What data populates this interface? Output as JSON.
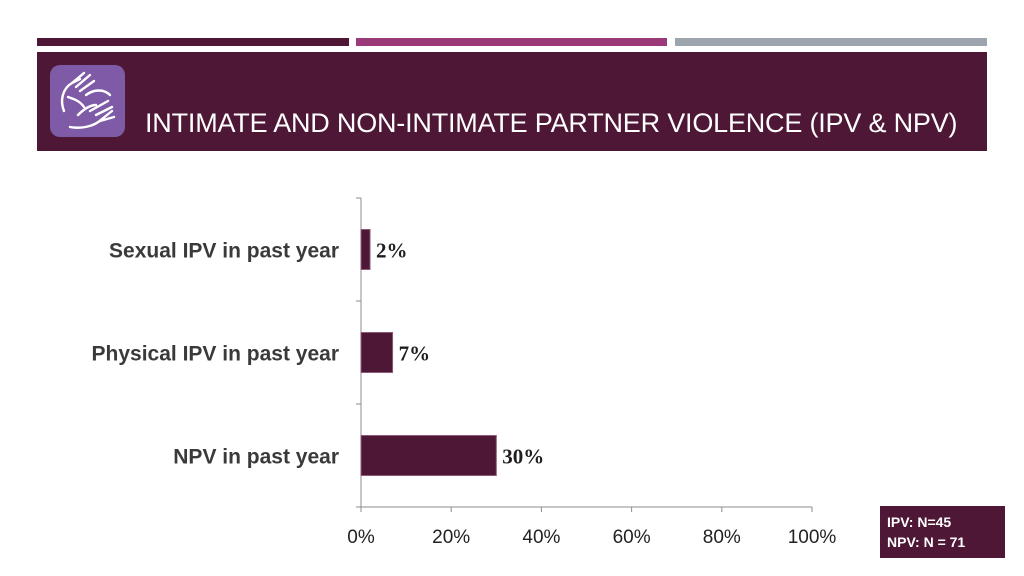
{
  "colors": {
    "accent": "#4e1735",
    "stripe_primary": "#4e1735",
    "stripe_secondary": "#9a3a78",
    "stripe_tertiary": "#9ca4ad",
    "logo_background": "#7f5aa6",
    "axis": "#8c8c8c"
  },
  "header": {
    "title": "INTIMATE AND NON-INTIMATE PARTNER VIOLENCE (IPV & NPV)",
    "logo_icon": "hands-icon"
  },
  "chart_data": {
    "type": "bar",
    "orientation": "horizontal",
    "categories": [
      "Sexual IPV in past year",
      "Physical IPV in past year",
      "NPV in past year"
    ],
    "values": [
      2,
      7,
      30
    ],
    "value_labels": [
      "2%",
      "7%",
      "30%"
    ],
    "xlim": [
      0,
      100
    ],
    "x_ticks": [
      0,
      20,
      40,
      60,
      80,
      100
    ],
    "x_tick_labels": [
      "0%",
      "20%",
      "40%",
      "60%",
      "80%",
      "100%"
    ],
    "grid": false,
    "legend": "none"
  },
  "note": {
    "line1": "IPV:  N=45",
    "line2": "NPV: N = 71"
  }
}
